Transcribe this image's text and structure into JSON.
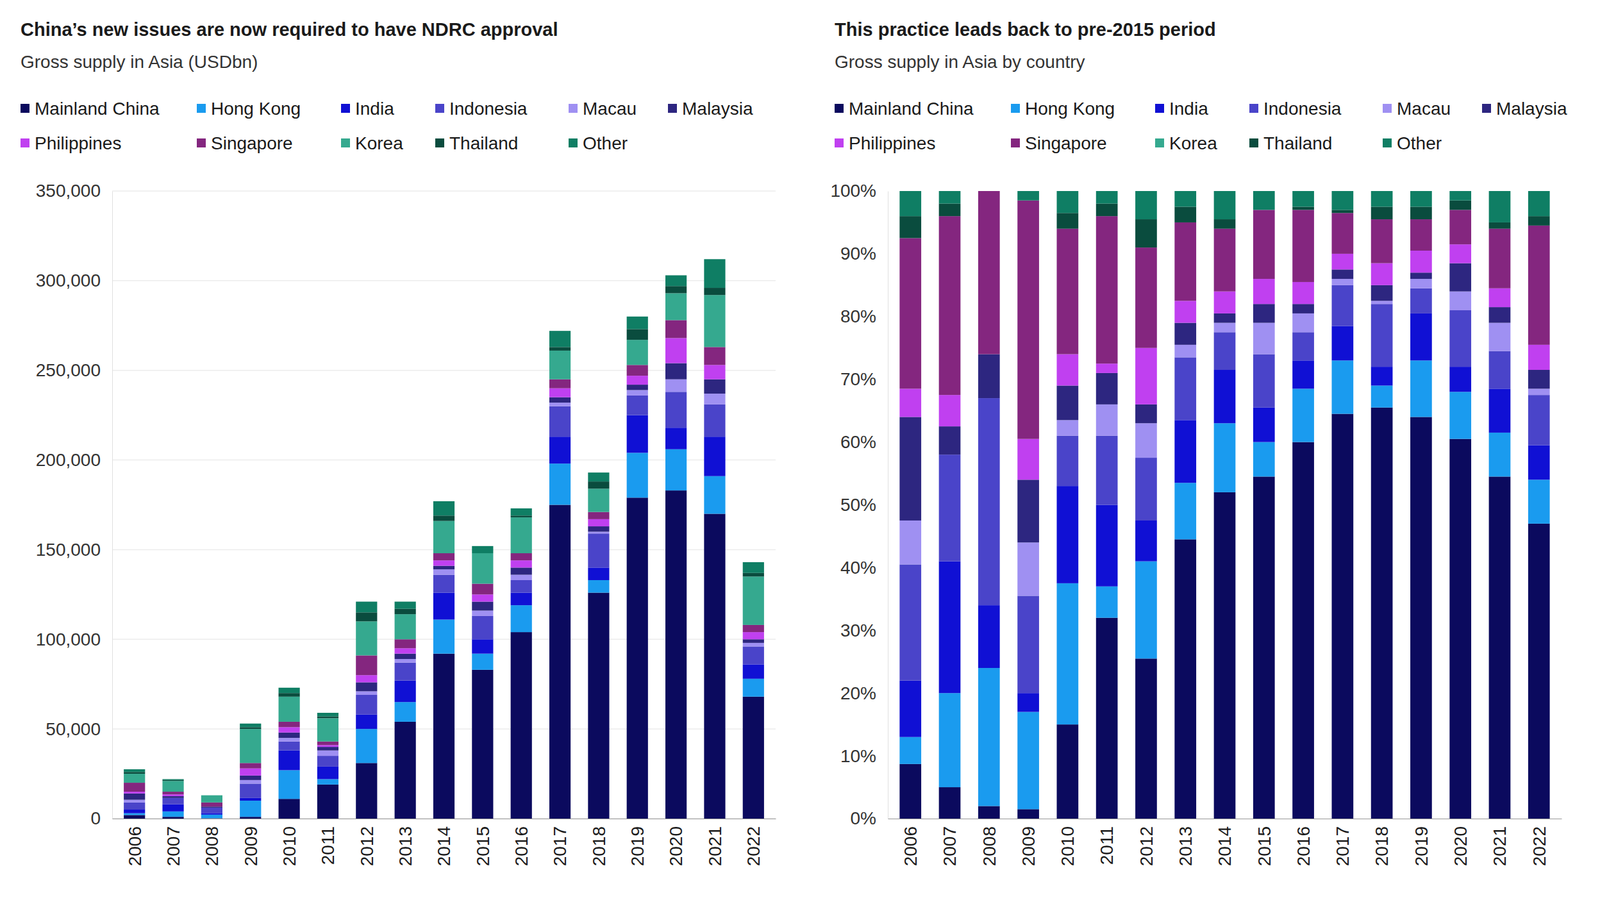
{
  "chart_data": [
    {
      "type": "bar",
      "stacked": true,
      "grid": true,
      "legend": "top",
      "title": "China’s new issues are now required to have NDRC approval",
      "subtitle": "Gross supply in Asia (USDbn)",
      "categories": [
        "2006",
        "2007",
        "2008",
        "2009",
        "2010",
        "2011",
        "2012",
        "2013",
        "2014",
        "2015",
        "2016",
        "2017",
        "2018",
        "2019",
        "2020",
        "2021",
        "2022"
      ],
      "ylim": [
        0,
        350000
      ],
      "yticks": [
        0,
        {
          "value": 50000,
          "label": "50,000"
        },
        {
          "value": 100000,
          "label": "100,000"
        },
        {
          "value": 150000,
          "label": "150,000"
        },
        {
          "value": 200000,
          "label": "200,000"
        },
        {
          "value": 250000,
          "label": "250,000"
        },
        {
          "value": 300000,
          "label": "300,000"
        },
        {
          "value": 350000,
          "label": "350,000"
        }
      ],
      "series": [
        {
          "name": "Mainland China",
          "color": "#0b0a5e",
          "values": [
            2000,
            1000,
            200,
            1000,
            11000,
            19000,
            31000,
            54000,
            92000,
            83000,
            104000,
            175000,
            126000,
            179000,
            183000,
            170000,
            68000
          ]
        },
        {
          "name": "Hong Kong",
          "color": "#1a9bef",
          "values": [
            1000,
            3000,
            2000,
            9000,
            16000,
            3000,
            19000,
            11000,
            19000,
            9000,
            15000,
            23000,
            7000,
            25000,
            23000,
            21000,
            10000
          ]
        },
        {
          "name": "India",
          "color": "#1010d4",
          "values": [
            2000,
            4000,
            900,
            1500,
            11000,
            7000,
            8000,
            12000,
            15000,
            8000,
            7000,
            15000,
            7000,
            21000,
            12000,
            22000,
            8000
          ]
        },
        {
          "name": "Indonesia",
          "color": "#4a44c9",
          "values": [
            4000,
            3500,
            3000,
            8000,
            5000,
            6000,
            11000,
            10000,
            10000,
            13000,
            7000,
            17000,
            19000,
            11000,
            20000,
            18000,
            10000
          ]
        },
        {
          "name": "Macau",
          "color": "#9f90f2",
          "values": [
            1500,
            0,
            0,
            2000,
            2000,
            3000,
            2000,
            2000,
            3000,
            3000,
            3000,
            2000,
            1000,
            3000,
            7000,
            6000,
            2000
          ]
        },
        {
          "name": "Malaysia",
          "color": "#2d2680",
          "values": [
            3500,
            1000,
            600,
            2500,
            3000,
            2000,
            5000,
            3000,
            2000,
            5000,
            4000,
            3000,
            3000,
            3000,
            9000,
            8000,
            2000
          ]
        },
        {
          "name": "Philippines",
          "color": "#c040f0",
          "values": [
            1000,
            1000,
            0,
            4000,
            3000,
            1000,
            4000,
            3000,
            3000,
            4000,
            4000,
            5000,
            4000,
            5000,
            14000,
            8000,
            4000
          ]
        },
        {
          "name": "Singapore",
          "color": "#84267f",
          "values": [
            5000,
            1500,
            2300,
            3000,
            3000,
            2000,
            11000,
            5000,
            4000,
            6000,
            4000,
            5000,
            4000,
            6000,
            10000,
            10000,
            4000
          ]
        },
        {
          "name": "Korea",
          "color": "#35a98f",
          "values": [
            5000,
            6000,
            4000,
            19000,
            14000,
            13000,
            19000,
            14000,
            18000,
            17000,
            20000,
            16000,
            13000,
            14000,
            15000,
            29000,
            27000
          ]
        },
        {
          "name": "Thailand",
          "color": "#0a4c3e",
          "values": [
            1000,
            500,
            0,
            1000,
            2000,
            1000,
            5000,
            3000,
            3000,
            0,
            1000,
            2000,
            4000,
            6000,
            4000,
            4000,
            2000
          ]
        },
        {
          "name": "Other",
          "color": "#0f7e64",
          "values": [
            1500,
            500,
            0,
            2000,
            3000,
            2000,
            6000,
            4000,
            8000,
            4000,
            4000,
            9000,
            5000,
            7000,
            6000,
            16000,
            6000
          ]
        }
      ]
    },
    {
      "type": "bar",
      "stacked": true,
      "grid": false,
      "legend": "top",
      "title": "This practice leads back to pre-2015 period",
      "subtitle": "Gross supply in Asia by country",
      "categories": [
        "2006",
        "2007",
        "2008",
        "2009",
        "2010",
        "2011",
        "2012",
        "2013",
        "2014",
        "2015",
        "2016",
        "2017",
        "2018",
        "2019",
        "2020",
        "2021",
        "2022"
      ],
      "ylim": [
        0,
        100
      ],
      "yticks": [
        {
          "value": 0,
          "label": "0%"
        },
        {
          "value": 10,
          "label": "10%"
        },
        {
          "value": 20,
          "label": "20%"
        },
        {
          "value": 30,
          "label": "30%"
        },
        {
          "value": 40,
          "label": "40%"
        },
        {
          "value": 50,
          "label": "50%"
        },
        {
          "value": 60,
          "label": "60%"
        },
        {
          "value": 70,
          "label": "70%"
        },
        {
          "value": 80,
          "label": "80%"
        },
        {
          "value": 90,
          "label": "90%"
        },
        {
          "value": 100,
          "label": "100%"
        }
      ],
      "series": [
        {
          "name": "Mainland China",
          "color": "#0b0a5e",
          "values": [
            8.7,
            5,
            2,
            1.5,
            15,
            32,
            25.5,
            44.5,
            52,
            54.5,
            60,
            64.5,
            65.5,
            64,
            60.5,
            54.5,
            47
          ]
        },
        {
          "name": "Hong Kong",
          "color": "#1a9bef",
          "values": [
            4.3,
            15,
            22,
            15.5,
            22.5,
            5,
            15.5,
            9,
            11,
            5.5,
            8.5,
            8.5,
            3.5,
            9,
            7.5,
            7,
            7
          ]
        },
        {
          "name": "India",
          "color": "#1010d4",
          "values": [
            9,
            21,
            10,
            3,
            15.5,
            13,
            6.5,
            10,
            8.5,
            5.5,
            4.5,
            5.5,
            3,
            7.5,
            4,
            7,
            5.5
          ]
        },
        {
          "name": "Indonesia",
          "color": "#4a44c9",
          "values": [
            18.5,
            17,
            33,
            15.5,
            8,
            11,
            10,
            10,
            6,
            8.5,
            4.5,
            6.5,
            10,
            4,
            9,
            6,
            8
          ]
        },
        {
          "name": "Macau",
          "color": "#9f90f2",
          "values": [
            7,
            0,
            0,
            8.5,
            2.5,
            5,
            5.5,
            2,
            1.5,
            5,
            3,
            1,
            0.5,
            1.5,
            3,
            4.5,
            1
          ]
        },
        {
          "name": "Malaysia",
          "color": "#2d2680",
          "values": [
            16.5,
            4.5,
            7,
            10,
            5.5,
            5,
            3,
            3.5,
            1.5,
            3,
            1.5,
            1.5,
            2.5,
            1,
            4.5,
            2.5,
            3
          ]
        },
        {
          "name": "Philippines",
          "color": "#c040f0",
          "values": [
            4.5,
            5,
            0,
            6.5,
            5,
            1.5,
            9,
            3.5,
            3.5,
            4,
            3.5,
            2.5,
            3.5,
            3.5,
            3,
            3,
            4
          ]
        },
        {
          "name": "Singapore",
          "color": "#84267f",
          "values": [
            24,
            28.5,
            26,
            38,
            20,
            23.5,
            16,
            12.5,
            10,
            11,
            11.5,
            6.5,
            7,
            5,
            5.5,
            9.5,
            19
          ]
        },
        {
          "name": "Korea",
          "color": "#35a98f",
          "values": [
            0,
            0,
            0,
            0,
            0,
            0,
            0,
            0,
            0,
            0,
            0,
            0,
            0,
            0,
            0,
            0,
            0
          ]
        },
        {
          "name": "Thailand",
          "color": "#0a4c3e",
          "values": [
            3.5,
            2,
            0,
            0,
            2.5,
            2,
            4.5,
            2.5,
            1.5,
            0,
            0.5,
            0.5,
            2,
            2,
            1.5,
            1,
            1.5
          ]
        },
        {
          "name": "Other",
          "color": "#0f7e64",
          "values": [
            4,
            2,
            0,
            1.5,
            3.5,
            2,
            4.5,
            2.5,
            4.5,
            3,
            2.5,
            3,
            2.5,
            2.5,
            1.5,
            5,
            4
          ]
        }
      ]
    }
  ]
}
